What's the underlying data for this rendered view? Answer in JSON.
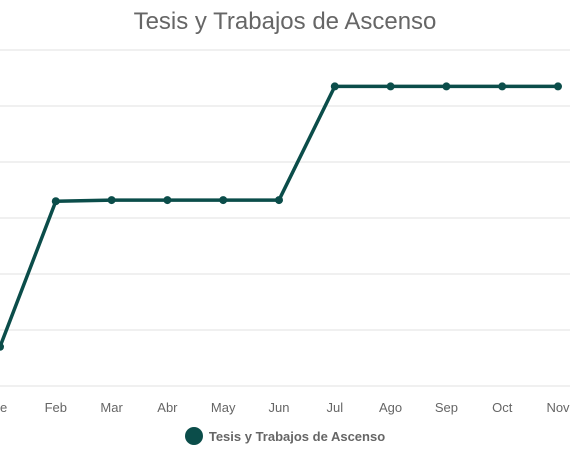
{
  "chart_data": {
    "type": "line",
    "title": "Tesis y Trabajos de Ascenso",
    "categories": [
      "Ene",
      "Feb",
      "Mar",
      "Abr",
      "May",
      "Jun",
      "Jul",
      "Ago",
      "Sep",
      "Oct",
      "Nov"
    ],
    "visible_tick_labels": [
      "ne",
      "Feb",
      "Mar",
      "Abr",
      "May",
      "Jun",
      "Jul",
      "Ago",
      "Sep",
      "Oct",
      "Nov"
    ],
    "series": [
      {
        "name": "Tesis y Trabajos de Ascenso",
        "values": [
          0.7,
          3.3,
          3.32,
          3.32,
          3.32,
          3.32,
          5.35,
          5.35,
          5.35,
          5.35,
          5.35
        ],
        "color": "#0b4d4a"
      }
    ],
    "ylim": [
      0,
      6
    ],
    "grid": true,
    "legend_position": "bottom"
  }
}
